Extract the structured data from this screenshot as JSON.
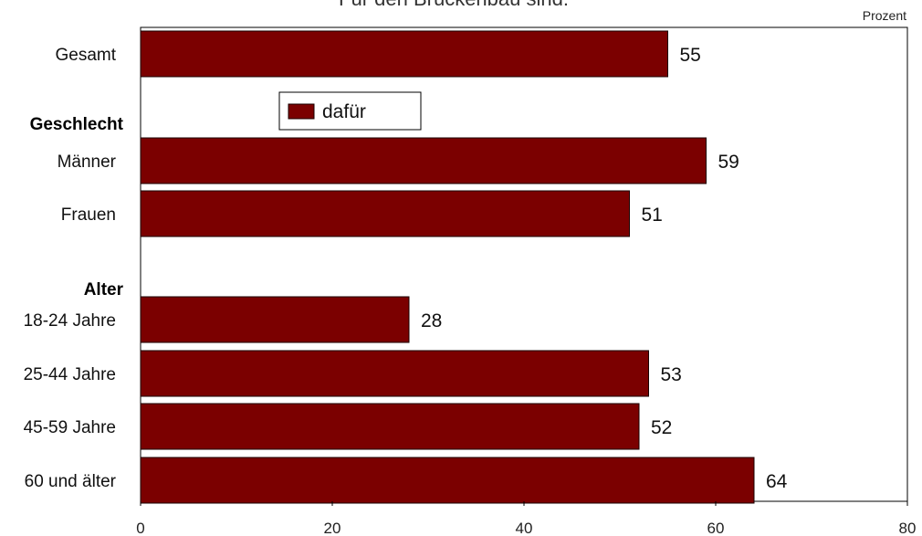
{
  "colors": {
    "bar": "#7b0000",
    "bar_stroke": "#1a0000",
    "frame": "#000000"
  },
  "chart_data": {
    "type": "bar",
    "orientation": "horizontal",
    "title": "Für den Brückenbau sind:",
    "unit_label": "Prozent",
    "legend": {
      "label": "dafür",
      "placement": "top-center"
    },
    "xlim": [
      0,
      80
    ],
    "xticks": [
      "0",
      "20",
      "40",
      "60",
      "80"
    ],
    "grid": false,
    "groups": [
      {
        "label": "",
        "items": [
          {
            "category": "Gesamt",
            "value": 55
          }
        ]
      },
      {
        "label": "Geschlecht",
        "items": [
          {
            "category": "Männer",
            "value": 59
          },
          {
            "category": "Frauen",
            "value": 51
          }
        ]
      },
      {
        "label": "Alter",
        "items": [
          {
            "category": "18-24 Jahre",
            "value": 28
          },
          {
            "category": "25-44 Jahre",
            "value": 53
          },
          {
            "category": "45-59 Jahre",
            "value": 52
          },
          {
            "category": "60 und älter",
            "value": 64
          }
        ]
      }
    ]
  }
}
